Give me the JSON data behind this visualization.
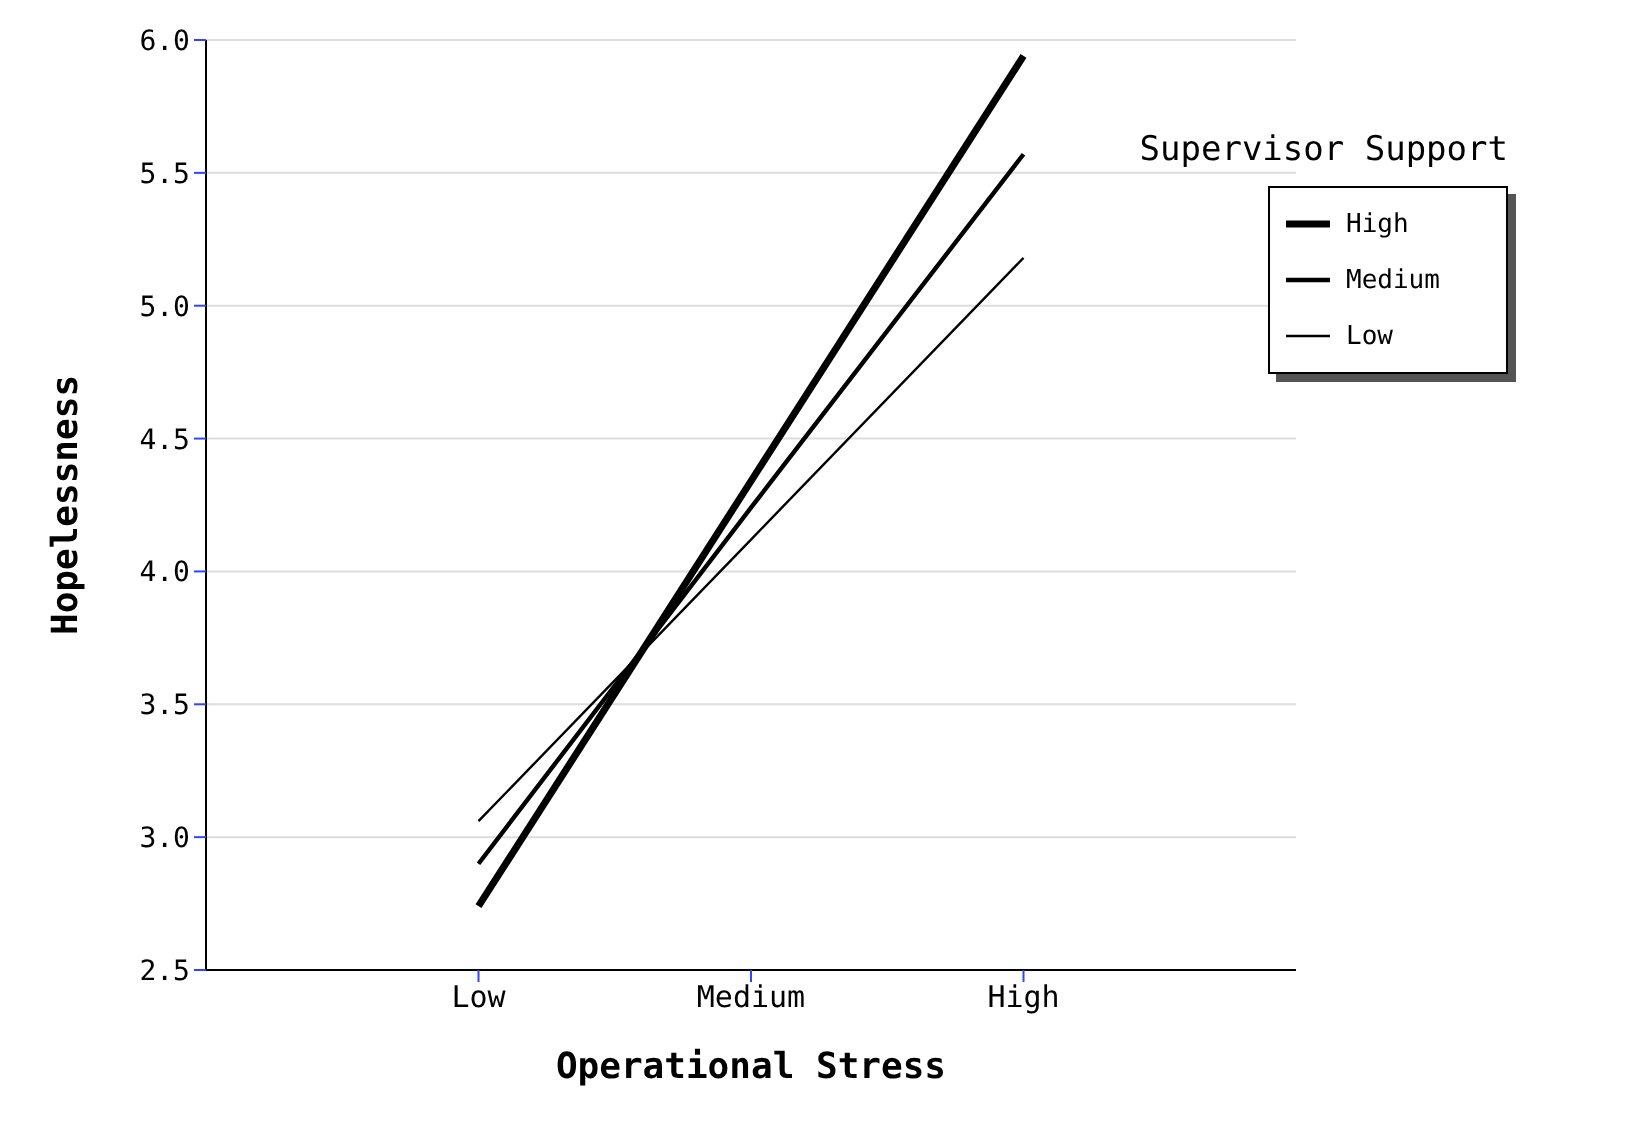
{
  "chart_data": {
    "type": "line",
    "xlabel": "Operational Stress",
    "ylabel": "Hopelessness",
    "legend_title": "Supervisor Support",
    "categories": [
      "Low",
      "Medium",
      "High"
    ],
    "series": [
      {
        "name": "High",
        "color": "#000000",
        "values": [
          2.74,
          4.34,
          5.94
        ]
      },
      {
        "name": "Medium",
        "color": "#000000",
        "values": [
          2.9,
          4.24,
          5.57
        ]
      },
      {
        "name": "Low",
        "color": "#000000",
        "values": [
          3.06,
          4.12,
          5.18
        ]
      }
    ],
    "ylim": [
      2.5,
      6
    ],
    "yticks": [
      {
        "value": 2.5,
        "label": "2.5"
      },
      {
        "value": 3,
        "label": "3.0"
      },
      {
        "value": 3.5,
        "label": "3.5"
      },
      {
        "value": 4,
        "label": "4.0"
      },
      {
        "value": 4.5,
        "label": "4.5"
      },
      {
        "value": 5,
        "label": "5.0"
      },
      {
        "value": 5.5,
        "label": "5.5"
      },
      {
        "value": 6,
        "label": "6.0"
      }
    ],
    "grid": "y",
    "legend": "top right",
    "marker": "none",
    "line_style": "solid"
  }
}
